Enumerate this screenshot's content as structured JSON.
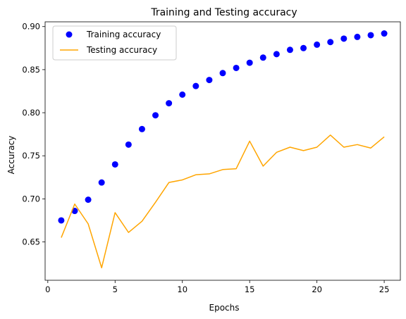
{
  "chart_data": {
    "type": "scatter",
    "title": "Training and Testing accuracy",
    "xlabel": "Epochs",
    "ylabel": "Accuracy",
    "xlim": [
      -0.2,
      26.2
    ],
    "ylim": [
      0.6055,
      0.9055
    ],
    "xticks": [
      0,
      5,
      10,
      15,
      20,
      25
    ],
    "xtick_labels": [
      "0",
      "5",
      "10",
      "15",
      "20",
      "25"
    ],
    "yticks": [
      0.65,
      0.7,
      0.75,
      0.8,
      0.85,
      0.9
    ],
    "ytick_labels": [
      "0.65",
      "0.70",
      "0.75",
      "0.80",
      "0.85",
      "0.90"
    ],
    "grid": false,
    "legend_position": "top-left",
    "x": [
      1,
      2,
      3,
      4,
      5,
      6,
      7,
      8,
      9,
      10,
      11,
      12,
      13,
      14,
      15,
      16,
      17,
      18,
      19,
      20,
      21,
      22,
      23,
      24,
      25
    ],
    "series": [
      {
        "name": "Training accuracy",
        "style": "markers",
        "color": "#0000ff",
        "values": [
          0.675,
          0.686,
          0.699,
          0.719,
          0.74,
          0.763,
          0.781,
          0.797,
          0.811,
          0.821,
          0.831,
          0.838,
          0.846,
          0.852,
          0.858,
          0.864,
          0.868,
          0.873,
          0.875,
          0.879,
          0.882,
          0.886,
          0.888,
          0.89,
          0.892
        ]
      },
      {
        "name": "Testing accuracy",
        "style": "line",
        "color": "#ffa500",
        "values": [
          0.655,
          0.694,
          0.671,
          0.62,
          0.684,
          0.661,
          0.674,
          0.696,
          0.719,
          0.722,
          0.728,
          0.729,
          0.734,
          0.735,
          0.767,
          0.738,
          0.754,
          0.76,
          0.756,
          0.76,
          0.774,
          0.76,
          0.763,
          0.759,
          0.772
        ]
      }
    ]
  }
}
